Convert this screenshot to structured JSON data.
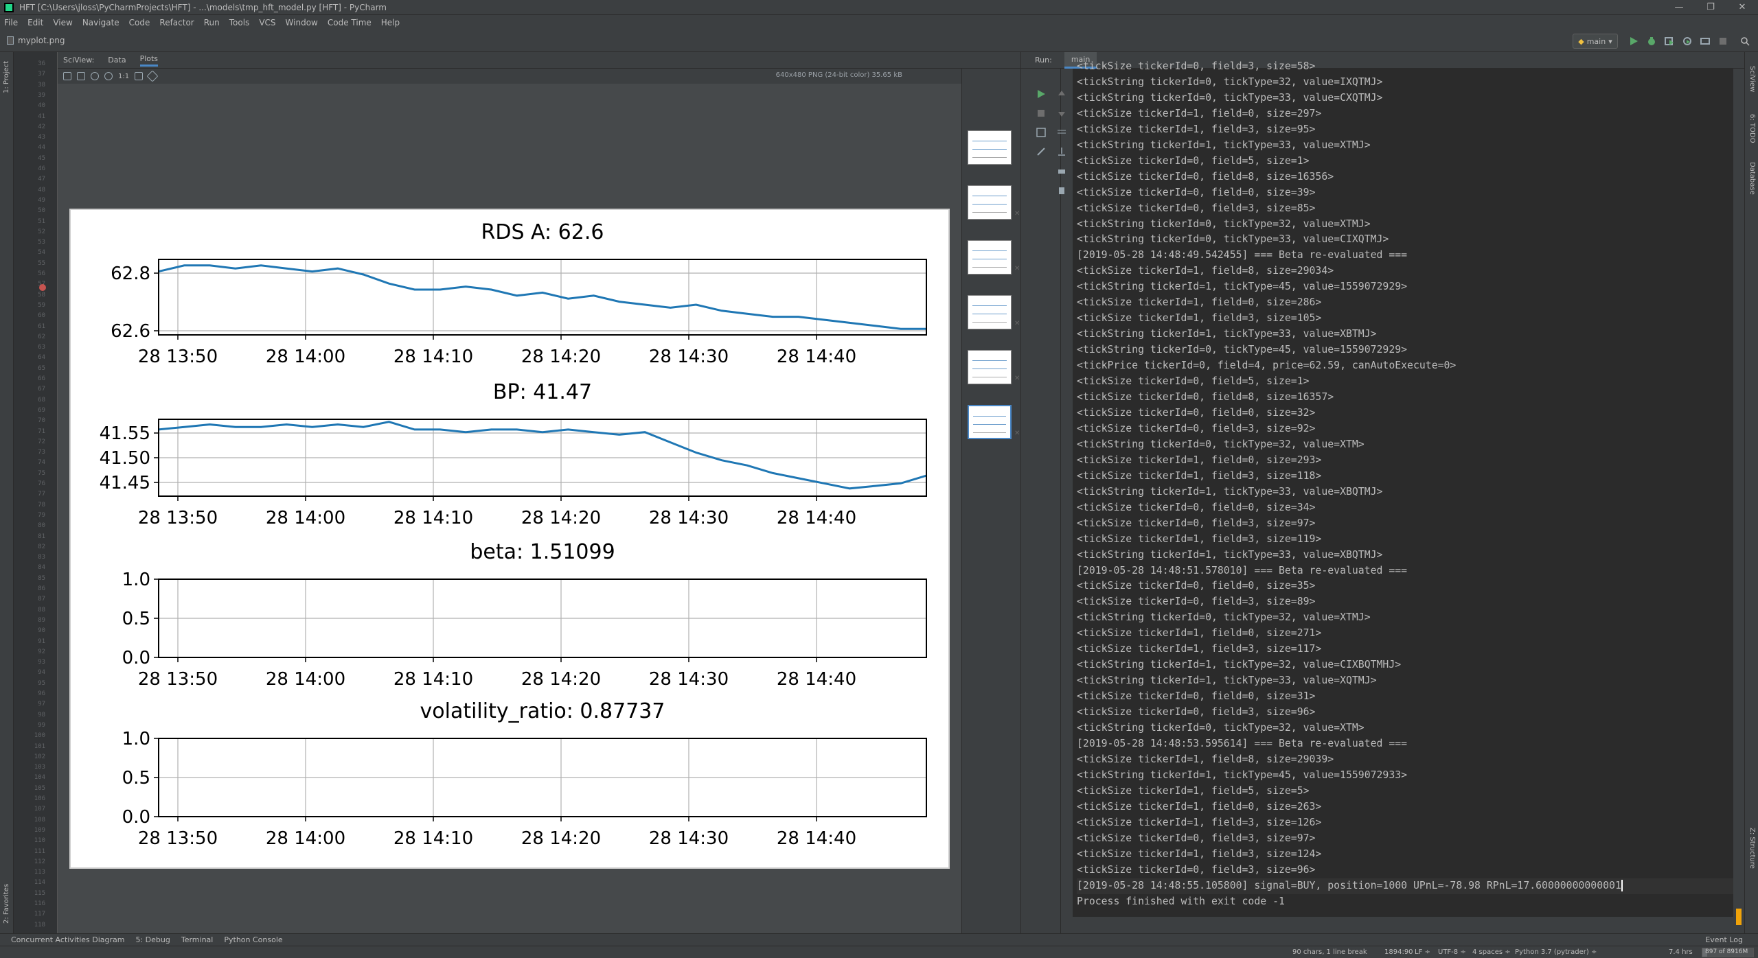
{
  "window": {
    "title": "HFT [C:\\Users\\jloss\\PyCharmProjects\\HFT] - ...\\models\\tmp_hft_model.py [HFT] - PyCharm",
    "minimize": "—",
    "restore": "❐",
    "close": "✕"
  },
  "menu": [
    "File",
    "Edit",
    "View",
    "Navigate",
    "Code",
    "Refactor",
    "Run",
    "Tools",
    "VCS",
    "Window",
    "Code Time",
    "Help"
  ],
  "navbar": {
    "file": "myplot.png",
    "run_config": "main"
  },
  "left_tools": {
    "project": "1: Project",
    "favorites": "2: Favorites"
  },
  "right_tools": {
    "sciview": "SciView",
    "todo": "6: TODO",
    "database": "Database",
    "structure": "Z: Structure"
  },
  "gutter_lines": [
    "36",
    "37",
    "38",
    "39",
    "40",
    "41",
    "42",
    "43",
    "44",
    "45",
    "46",
    "47",
    "48",
    "49",
    "50",
    "51",
    "52",
    "53",
    "54",
    "55",
    "56",
    "57",
    "58",
    "59",
    "60",
    "61",
    "62",
    "63",
    "64",
    "65",
    "66",
    "67",
    "68",
    "69",
    "70",
    "71",
    "72",
    "73",
    "74",
    "75",
    "76",
    "77",
    "78",
    "79",
    "80",
    "81",
    "82",
    "83",
    "84",
    "85",
    "86",
    "87",
    "88",
    "89",
    "90",
    "91",
    "92",
    "93",
    "94",
    "95",
    "96",
    "97",
    "98",
    "99",
    "100",
    "101",
    "102",
    "103",
    "104",
    "105",
    "106",
    "107",
    "108",
    "109",
    "110",
    "111",
    "112",
    "113",
    "114",
    "115",
    "116",
    "117",
    "118"
  ],
  "sciview": {
    "label": "SciView:",
    "tabs": [
      "Data",
      "Plots"
    ],
    "image_info": "640x480 PNG (24-bit color) 35.65 kB",
    "zoom_reset": "1:1"
  },
  "chart_data": [
    {
      "type": "line",
      "title": "RDS A: 62.6",
      "x_ticks": [
        "28 13:50",
        "28 14:00",
        "28 14:10",
        "28 14:20",
        "28 14:30",
        "28 14:40"
      ],
      "y_ticks": [
        "62.8",
        "62.6"
      ],
      "ylim": [
        62.58,
        62.83
      ],
      "color": "#1f77b4",
      "x": [
        0,
        2,
        4,
        6,
        8,
        10,
        12,
        14,
        16,
        18,
        20,
        22,
        24,
        26,
        28,
        30,
        32,
        34,
        36,
        38,
        40,
        42,
        44,
        46,
        48,
        50,
        52,
        54,
        56,
        58,
        60
      ],
      "values": [
        62.79,
        62.81,
        62.81,
        62.8,
        62.81,
        62.8,
        62.79,
        62.8,
        62.78,
        62.75,
        62.73,
        62.73,
        62.74,
        62.73,
        62.71,
        62.72,
        62.7,
        62.71,
        62.69,
        62.68,
        62.67,
        62.68,
        62.66,
        62.65,
        62.64,
        62.64,
        62.63,
        62.62,
        62.61,
        62.6,
        62.6
      ]
    },
    {
      "type": "line",
      "title": "BP: 41.47",
      "x_ticks": [
        "28 13:50",
        "28 14:00",
        "28 14:10",
        "28 14:20",
        "28 14:30",
        "28 14:40"
      ],
      "y_ticks": [
        "41.55",
        "41.50",
        "41.45"
      ],
      "ylim": [
        41.425,
        41.575
      ],
      "color": "#1f77b4",
      "x": [
        0,
        2,
        4,
        6,
        8,
        10,
        12,
        14,
        16,
        18,
        20,
        22,
        24,
        26,
        28,
        30,
        32,
        34,
        36,
        38,
        40,
        42,
        44,
        46,
        48,
        50,
        52,
        54,
        56,
        58,
        60
      ],
      "values": [
        41.555,
        41.56,
        41.565,
        41.56,
        41.56,
        41.565,
        41.56,
        41.565,
        41.56,
        41.57,
        41.555,
        41.555,
        41.55,
        41.555,
        41.555,
        41.55,
        41.555,
        41.55,
        41.545,
        41.55,
        41.53,
        41.51,
        41.495,
        41.485,
        41.47,
        41.46,
        41.45,
        41.44,
        41.445,
        41.45,
        41.465
      ]
    },
    {
      "type": "line",
      "title": "beta: 1.51099",
      "x_ticks": [
        "28 13:50",
        "28 14:00",
        "28 14:10",
        "28 14:20",
        "28 14:30",
        "28 14:40"
      ],
      "y_ticks": [
        "1.0",
        "0.5",
        "0.0"
      ],
      "ylim": [
        0,
        1
      ],
      "x": [],
      "values": []
    },
    {
      "type": "line",
      "title": "volatility_ratio: 0.87737",
      "x_ticks": [
        "28 13:50",
        "28 14:00",
        "28 14:10",
        "28 14:20",
        "28 14:30",
        "28 14:40"
      ],
      "y_ticks": [
        "1.0",
        "0.5",
        "0.0"
      ],
      "ylim": [
        0,
        1
      ],
      "x": [],
      "values": []
    }
  ],
  "run": {
    "label": "Run:",
    "tab": "main",
    "console_lines": [
      "<tickSize tickerId=0, field=3, size=58>",
      "<tickString tickerId=0, tickType=32, value=IXQTMJ>",
      "<tickString tickerId=0, tickType=33, value=CXQTMJ>",
      "<tickSize tickerId=1, field=0, size=297>",
      "<tickSize tickerId=1, field=3, size=95>",
      "<tickString tickerId=1, tickType=33, value=XTMJ>",
      "<tickSize tickerId=0, field=5, size=1>",
      "<tickSize tickerId=0, field=8, size=16356>",
      "<tickSize tickerId=0, field=0, size=39>",
      "<tickSize tickerId=0, field=3, size=85>",
      "<tickString tickerId=0, tickType=32, value=XTMJ>",
      "<tickString tickerId=0, tickType=33, value=CIXQTMJ>",
      "[2019-05-28 14:48:49.542455] === Beta re-evaluated ===",
      "<tickSize tickerId=1, field=8, size=29034>",
      "<tickString tickerId=1, tickType=45, value=1559072929>",
      "<tickSize tickerId=1, field=0, size=286>",
      "<tickSize tickerId=1, field=3, size=105>",
      "<tickString tickerId=1, tickType=33, value=XBTMJ>",
      "<tickString tickerId=0, tickType=45, value=1559072929>",
      "<tickPrice tickerId=0, field=4, price=62.59, canAutoExecute=0>",
      "<tickSize tickerId=0, field=5, size=1>",
      "<tickSize tickerId=0, field=8, size=16357>",
      "<tickSize tickerId=0, field=0, size=32>",
      "<tickSize tickerId=0, field=3, size=92>",
      "<tickString tickerId=0, tickType=32, value=XTM>",
      "<tickSize tickerId=1, field=0, size=293>",
      "<tickSize tickerId=1, field=3, size=118>",
      "<tickString tickerId=1, tickType=33, value=XBQTMJ>",
      "<tickSize tickerId=0, field=0, size=34>",
      "<tickSize tickerId=0, field=3, size=97>",
      "<tickSize tickerId=1, field=3, size=119>",
      "<tickString tickerId=1, tickType=33, value=XBQTMJ>",
      "[2019-05-28 14:48:51.578010] === Beta re-evaluated ===",
      "<tickSize tickerId=0, field=0, size=35>",
      "<tickSize tickerId=0, field=3, size=89>",
      "<tickString tickerId=0, tickType=32, value=XTMJ>",
      "<tickSize tickerId=1, field=0, size=271>",
      "<tickSize tickerId=1, field=3, size=117>",
      "<tickString tickerId=1, tickType=32, value=CIXBQTMHJ>",
      "<tickString tickerId=1, tickType=33, value=XQTMJ>",
      "<tickSize tickerId=0, field=0, size=31>",
      "<tickSize tickerId=0, field=3, size=96>",
      "<tickString tickerId=0, tickType=32, value=XTM>",
      "[2019-05-28 14:48:53.595614] === Beta re-evaluated ===",
      "<tickSize tickerId=1, field=8, size=29039>",
      "<tickString tickerId=1, tickType=45, value=1559072933>",
      "<tickSize tickerId=1, field=5, size=5>",
      "<tickSize tickerId=1, field=0, size=263>",
      "<tickSize tickerId=1, field=3, size=126>",
      "<tickSize tickerId=0, field=3, size=97>",
      "<tickSize tickerId=1, field=3, size=124>",
      "<tickSize tickerId=0, field=3, size=96>",
      "[2019-05-28 14:48:55.105800] signal=BUY, position=1000 UPnL=-78.98 RPnL=17.60000000000001",
      "Process finished with exit code -1"
    ]
  },
  "bottom_tabs": [
    "Concurrent Activities Diagram",
    "5: Debug",
    "Terminal",
    "Python Console"
  ],
  "event_log": "Event Log",
  "status": {
    "selection": "90 chars, 1 line break",
    "position": "1894:90",
    "line_sep": "LF ÷",
    "encoding": "UTF-8 ÷",
    "indent": "4 spaces ÷",
    "interpreter": "Python 3.7 (pytrader) ÷",
    "time": "7.4 hrs",
    "memory": "897 of 8916M",
    "memory_fraction": 0.1
  },
  "colors": {
    "series": "#1f77b4",
    "accent": "#4a88c7",
    "console_bg": "#2b2b2b",
    "ide_bg": "#3c3f41"
  }
}
